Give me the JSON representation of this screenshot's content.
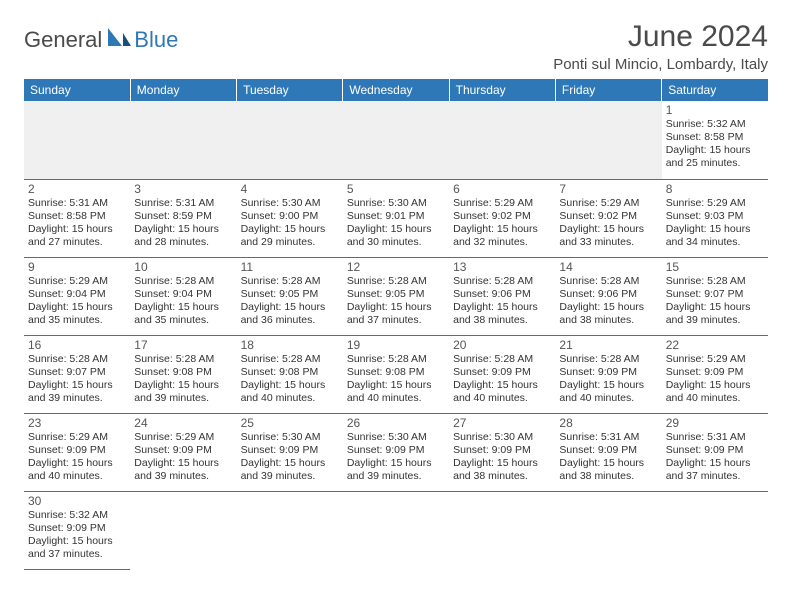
{
  "logo": {
    "text1": "General",
    "text2": "Blue"
  },
  "title": "June 2024",
  "location": "Ponti sul Mincio, Lombardy, Italy",
  "colors": {
    "header_bg": "#2f78b7",
    "header_fg": "#ffffff",
    "rule": "#2f78b7",
    "blank_bg": "#f0f0f0"
  },
  "weekdays": [
    "Sunday",
    "Monday",
    "Tuesday",
    "Wednesday",
    "Thursday",
    "Friday",
    "Saturday"
  ],
  "leading_blanks": 6,
  "days": [
    {
      "n": 1,
      "sr": "5:32 AM",
      "ss": "8:58 PM",
      "dlh": 15,
      "dlm": 25
    },
    {
      "n": 2,
      "sr": "5:31 AM",
      "ss": "8:58 PM",
      "dlh": 15,
      "dlm": 27
    },
    {
      "n": 3,
      "sr": "5:31 AM",
      "ss": "8:59 PM",
      "dlh": 15,
      "dlm": 28
    },
    {
      "n": 4,
      "sr": "5:30 AM",
      "ss": "9:00 PM",
      "dlh": 15,
      "dlm": 29
    },
    {
      "n": 5,
      "sr": "5:30 AM",
      "ss": "9:01 PM",
      "dlh": 15,
      "dlm": 30
    },
    {
      "n": 6,
      "sr": "5:29 AM",
      "ss": "9:02 PM",
      "dlh": 15,
      "dlm": 32
    },
    {
      "n": 7,
      "sr": "5:29 AM",
      "ss": "9:02 PM",
      "dlh": 15,
      "dlm": 33
    },
    {
      "n": 8,
      "sr": "5:29 AM",
      "ss": "9:03 PM",
      "dlh": 15,
      "dlm": 34
    },
    {
      "n": 9,
      "sr": "5:29 AM",
      "ss": "9:04 PM",
      "dlh": 15,
      "dlm": 35
    },
    {
      "n": 10,
      "sr": "5:28 AM",
      "ss": "9:04 PM",
      "dlh": 15,
      "dlm": 35
    },
    {
      "n": 11,
      "sr": "5:28 AM",
      "ss": "9:05 PM",
      "dlh": 15,
      "dlm": 36
    },
    {
      "n": 12,
      "sr": "5:28 AM",
      "ss": "9:05 PM",
      "dlh": 15,
      "dlm": 37
    },
    {
      "n": 13,
      "sr": "5:28 AM",
      "ss": "9:06 PM",
      "dlh": 15,
      "dlm": 38
    },
    {
      "n": 14,
      "sr": "5:28 AM",
      "ss": "9:06 PM",
      "dlh": 15,
      "dlm": 38
    },
    {
      "n": 15,
      "sr": "5:28 AM",
      "ss": "9:07 PM",
      "dlh": 15,
      "dlm": 39
    },
    {
      "n": 16,
      "sr": "5:28 AM",
      "ss": "9:07 PM",
      "dlh": 15,
      "dlm": 39
    },
    {
      "n": 17,
      "sr": "5:28 AM",
      "ss": "9:08 PM",
      "dlh": 15,
      "dlm": 39
    },
    {
      "n": 18,
      "sr": "5:28 AM",
      "ss": "9:08 PM",
      "dlh": 15,
      "dlm": 40
    },
    {
      "n": 19,
      "sr": "5:28 AM",
      "ss": "9:08 PM",
      "dlh": 15,
      "dlm": 40
    },
    {
      "n": 20,
      "sr": "5:28 AM",
      "ss": "9:09 PM",
      "dlh": 15,
      "dlm": 40
    },
    {
      "n": 21,
      "sr": "5:28 AM",
      "ss": "9:09 PM",
      "dlh": 15,
      "dlm": 40
    },
    {
      "n": 22,
      "sr": "5:29 AM",
      "ss": "9:09 PM",
      "dlh": 15,
      "dlm": 40
    },
    {
      "n": 23,
      "sr": "5:29 AM",
      "ss": "9:09 PM",
      "dlh": 15,
      "dlm": 40
    },
    {
      "n": 24,
      "sr": "5:29 AM",
      "ss": "9:09 PM",
      "dlh": 15,
      "dlm": 39
    },
    {
      "n": 25,
      "sr": "5:30 AM",
      "ss": "9:09 PM",
      "dlh": 15,
      "dlm": 39
    },
    {
      "n": 26,
      "sr": "5:30 AM",
      "ss": "9:09 PM",
      "dlh": 15,
      "dlm": 39
    },
    {
      "n": 27,
      "sr": "5:30 AM",
      "ss": "9:09 PM",
      "dlh": 15,
      "dlm": 38
    },
    {
      "n": 28,
      "sr": "5:31 AM",
      "ss": "9:09 PM",
      "dlh": 15,
      "dlm": 38
    },
    {
      "n": 29,
      "sr": "5:31 AM",
      "ss": "9:09 PM",
      "dlh": 15,
      "dlm": 37
    },
    {
      "n": 30,
      "sr": "5:32 AM",
      "ss": "9:09 PM",
      "dlh": 15,
      "dlm": 37
    }
  ],
  "labels": {
    "sunrise": "Sunrise:",
    "sunset": "Sunset:",
    "daylight_prefix": "Daylight:",
    "hours_word": "hours",
    "and_word": "and",
    "minutes_word": "minutes."
  }
}
